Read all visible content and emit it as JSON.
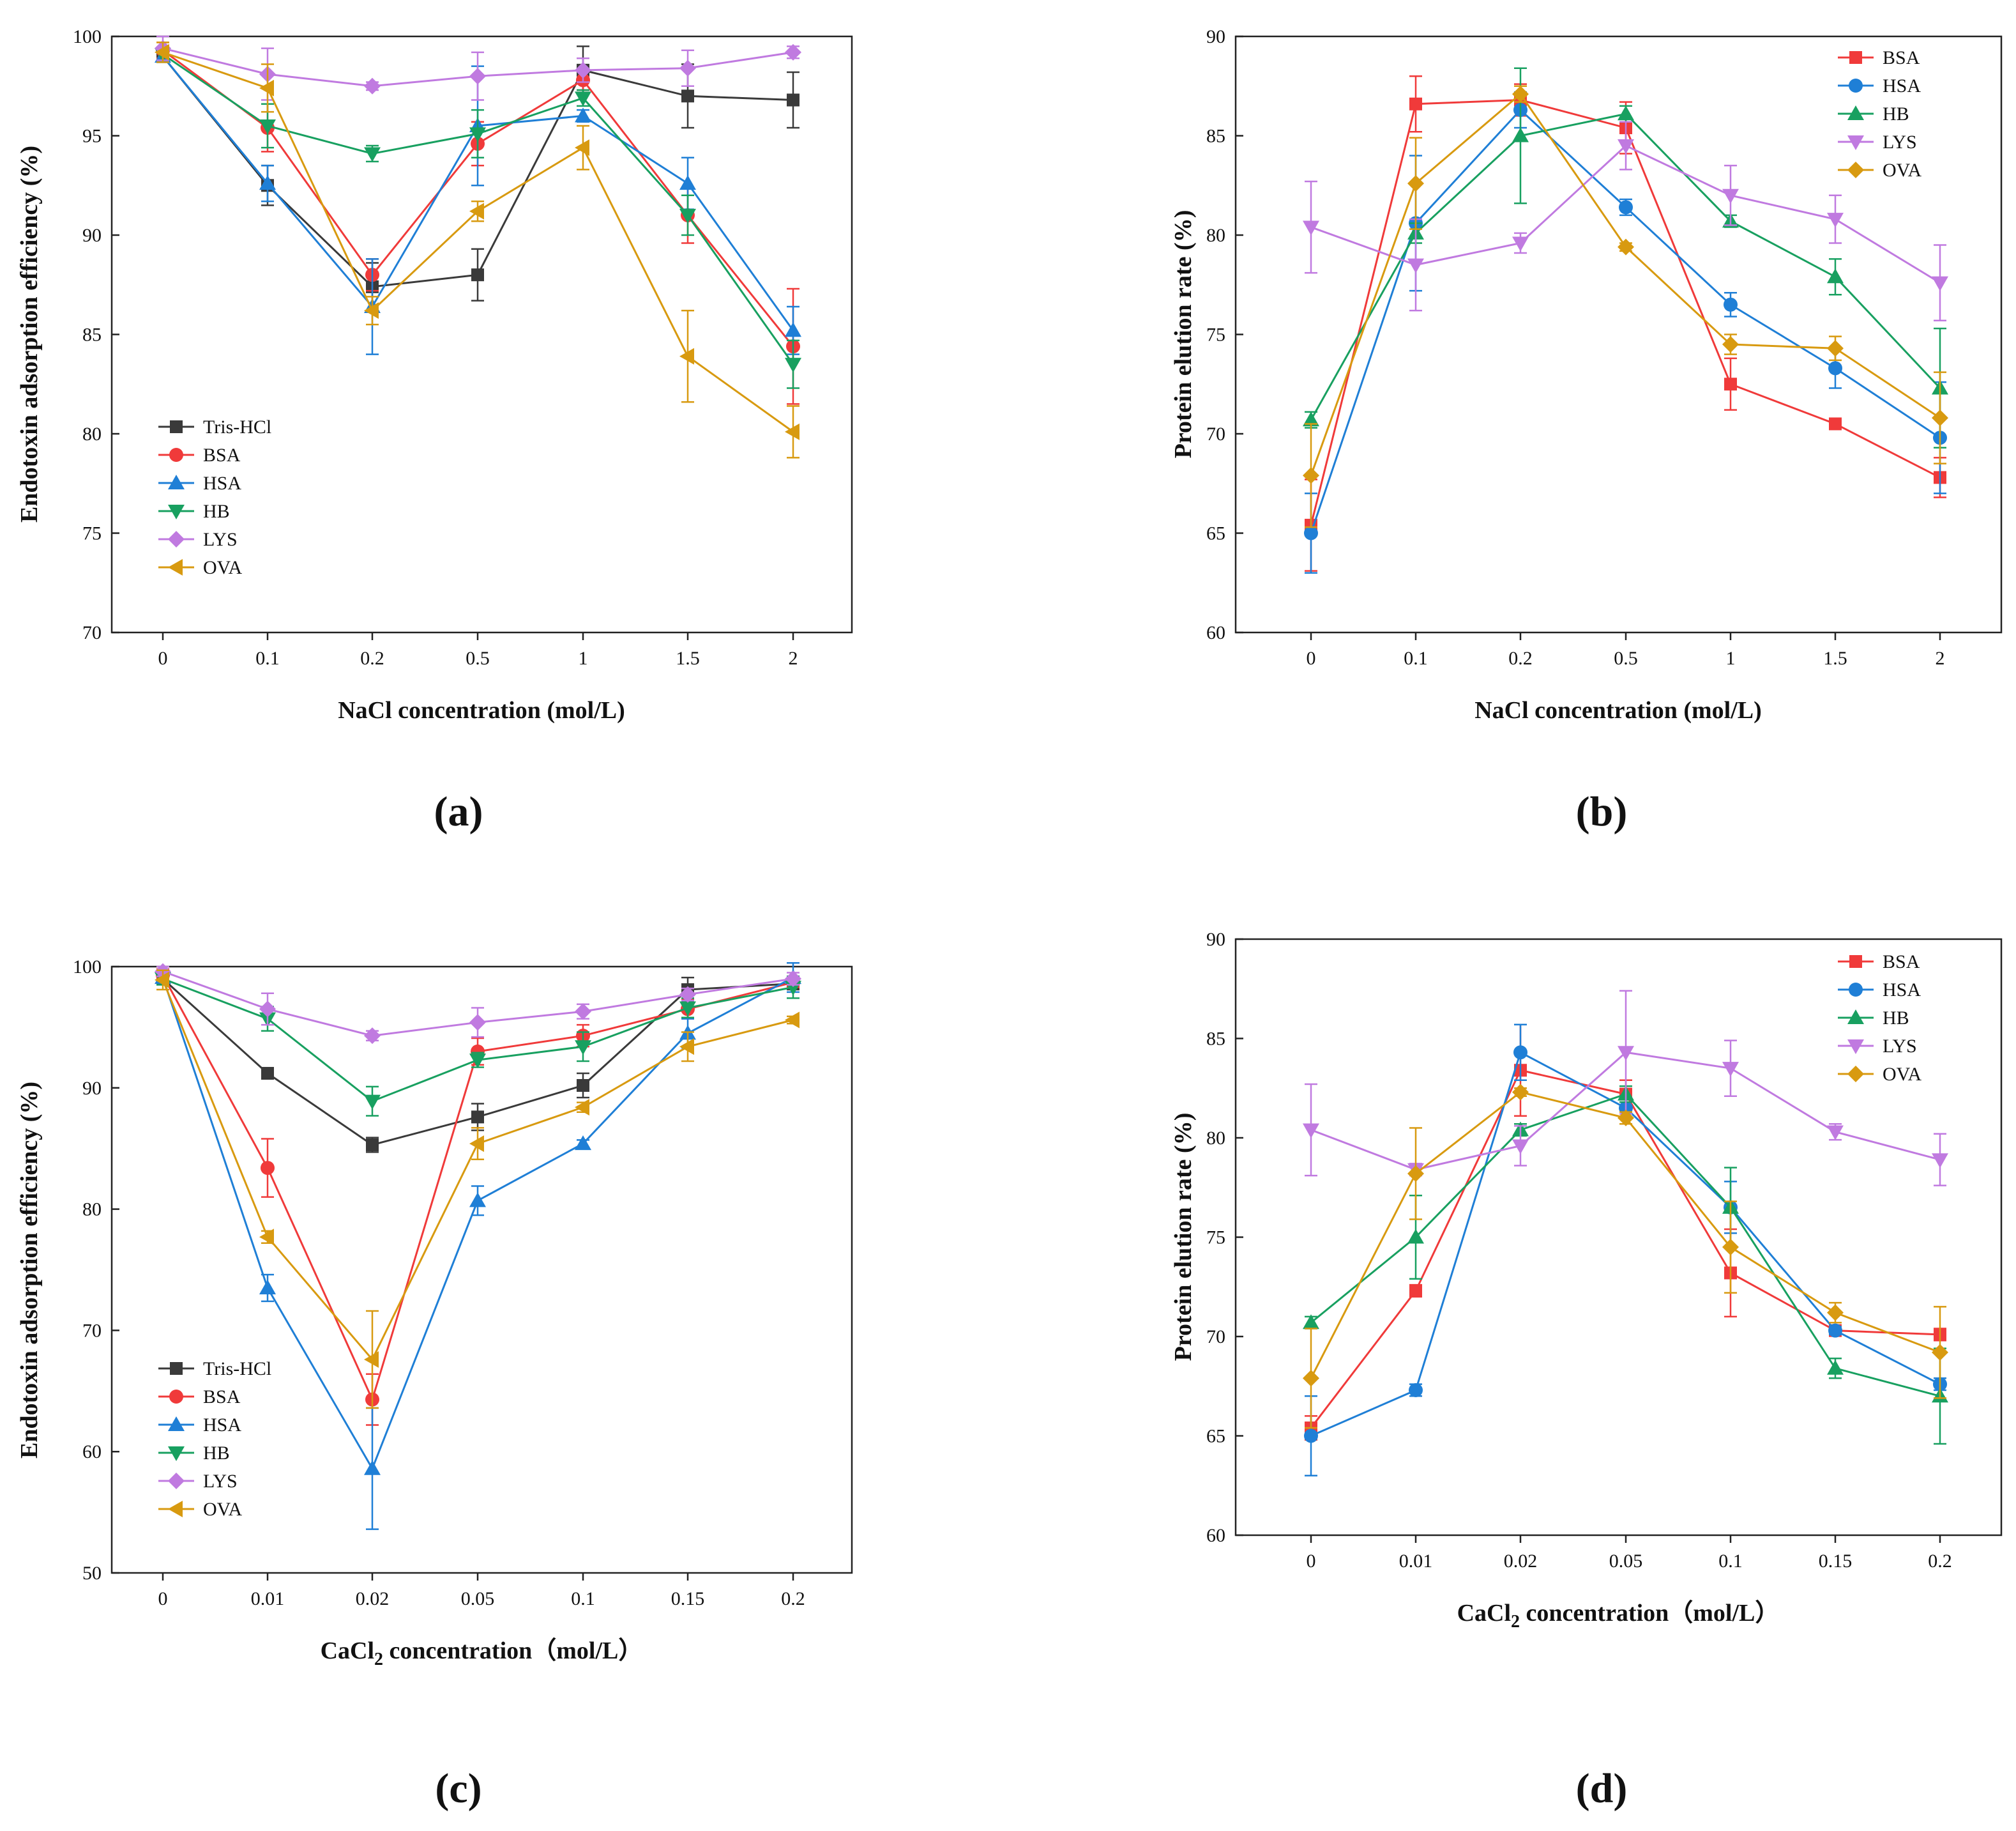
{
  "colors": {
    "Tris-HCl": "#3a3a3a",
    "BSA": "#f03a3a",
    "HSA": "#1f7fd6",
    "HB": "#18a060",
    "LYS": "#c07ae0",
    "OVA": "#d89a10"
  },
  "chart_data": [
    {
      "type": "line",
      "panel_label": "(a)",
      "xlabel": "NaCl concentration (mol/L)",
      "ylabel": "Endotoxin adsorption efficiency (%)",
      "categories": [
        "0",
        "0.1",
        "0.2",
        "0.5",
        "1",
        "1.5",
        "2"
      ],
      "ylim": [
        70,
        100
      ],
      "yticks": [
        "70",
        "75",
        "80",
        "85",
        "90",
        "95",
        "100"
      ],
      "legend_position": "bottom-left",
      "series": [
        {
          "name": "Tris-HCl",
          "marker": "square",
          "values": [
            99.0,
            92.5,
            87.4,
            88.0,
            98.3,
            97.0,
            96.8
          ],
          "errors": [
            0.3,
            1.0,
            1.2,
            1.3,
            1.2,
            1.6,
            1.4
          ]
        },
        {
          "name": "BSA",
          "marker": "circle",
          "values": [
            99.3,
            95.4,
            88.0,
            94.6,
            97.8,
            91.0,
            84.4
          ],
          "errors": [
            0.4,
            1.2,
            0.8,
            1.1,
            0.5,
            1.4,
            2.9
          ]
        },
        {
          "name": "HSA",
          "marker": "triangle-up",
          "values": [
            99.0,
            92.6,
            86.4,
            95.5,
            96.0,
            92.6,
            85.2
          ],
          "errors": [
            0.3,
            0.9,
            2.4,
            3.0,
            0.3,
            1.3,
            1.2
          ]
        },
        {
          "name": "HB",
          "marker": "triangle-down",
          "values": [
            99.1,
            95.5,
            94.1,
            95.1,
            96.9,
            91.0,
            83.5
          ],
          "errors": [
            0.3,
            1.1,
            0.4,
            1.2,
            0.4,
            1.0,
            1.2
          ]
        },
        {
          "name": "LYS",
          "marker": "diamond",
          "values": [
            99.4,
            98.1,
            97.5,
            98.0,
            98.3,
            98.4,
            99.2
          ],
          "errors": [
            0.6,
            1.3,
            0.2,
            1.2,
            0.6,
            0.9,
            0.3
          ]
        },
        {
          "name": "OVA",
          "marker": "triangle-left",
          "values": [
            99.2,
            97.4,
            86.2,
            91.2,
            94.4,
            83.9,
            80.1
          ],
          "errors": [
            0.5,
            1.2,
            0.7,
            0.5,
            1.1,
            2.3,
            1.3
          ]
        }
      ]
    },
    {
      "type": "line",
      "panel_label": "(b)",
      "xlabel": "NaCl concentration (mol/L)",
      "ylabel": "Protein elution rate (%)",
      "categories": [
        "0",
        "0.1",
        "0.2",
        "0.5",
        "1",
        "1.5",
        "2"
      ],
      "ylim": [
        60,
        90
      ],
      "yticks": [
        "60",
        "65",
        "70",
        "75",
        "80",
        "85",
        "90"
      ],
      "legend_position": "top-right",
      "series": [
        {
          "name": "BSA",
          "marker": "square",
          "values": [
            65.4,
            86.6,
            86.8,
            85.4,
            72.5,
            70.5,
            67.8
          ],
          "errors": [
            2.3,
            1.4,
            0.8,
            1.3,
            1.3,
            0.2,
            1.0
          ]
        },
        {
          "name": "HSA",
          "marker": "circle",
          "values": [
            65.0,
            80.6,
            86.3,
            81.4,
            76.5,
            73.3,
            69.8
          ],
          "errors": [
            2.0,
            3.4,
            0.9,
            0.4,
            0.6,
            1.0,
            2.8
          ]
        },
        {
          "name": "HB",
          "marker": "triangle-up",
          "values": [
            70.7,
            80.1,
            85.0,
            86.1,
            80.7,
            77.9,
            72.3
          ],
          "errors": [
            0.4,
            0.5,
            3.4,
            0.4,
            0.3,
            0.9,
            3.0
          ]
        },
        {
          "name": "LYS",
          "marker": "triangle-down",
          "values": [
            80.4,
            78.5,
            79.6,
            84.5,
            82.0,
            80.8,
            77.6
          ],
          "errors": [
            2.3,
            2.3,
            0.5,
            1.2,
            1.5,
            1.2,
            1.9
          ]
        },
        {
          "name": "OVA",
          "marker": "diamond",
          "values": [
            67.9,
            82.6,
            87.1,
            79.4,
            74.5,
            74.3,
            70.8
          ],
          "errors": [
            2.6,
            2.3,
            0.4,
            0.2,
            0.5,
            0.6,
            2.3
          ]
        }
      ]
    },
    {
      "type": "line",
      "panel_label": "(c)",
      "xlabel": "CaCl2 concentration（mol/L）",
      "xlabel_parts": {
        "pre": "CaCl",
        "sub": "2",
        "post": " concentration（mol/L）"
      },
      "ylabel": "Endotoxin adsorption efficiency (%)",
      "categories": [
        "0",
        "0.01",
        "0.02",
        "0.05",
        "0.1",
        "0.15",
        "0.2"
      ],
      "ylim": [
        50,
        100
      ],
      "yticks": [
        "50",
        "60",
        "70",
        "80",
        "90",
        "100"
      ],
      "legend_position": "bottom-left",
      "series": [
        {
          "name": "Tris-HCl",
          "marker": "square",
          "values": [
            99.0,
            91.2,
            85.3,
            87.6,
            90.2,
            98.1,
            98.6
          ],
          "errors": [
            0.4,
            0.3,
            0.6,
            1.1,
            1.0,
            1.0,
            0.5
          ]
        },
        {
          "name": "BSA",
          "marker": "circle",
          "values": [
            99.3,
            83.4,
            64.3,
            93.0,
            94.3,
            96.5,
            98.7
          ],
          "errors": [
            0.5,
            2.4,
            2.1,
            1.1,
            0.9,
            0.8,
            0.4
          ]
        },
        {
          "name": "HSA",
          "marker": "triangle-up",
          "values": [
            99.1,
            73.5,
            58.6,
            80.7,
            85.4,
            94.5,
            99.1
          ],
          "errors": [
            0.4,
            1.1,
            5.0,
            1.2,
            0.3,
            1.2,
            1.2
          ]
        },
        {
          "name": "HB",
          "marker": "triangle-down",
          "values": [
            99.0,
            95.7,
            88.9,
            92.3,
            93.4,
            96.6,
            98.3
          ],
          "errors": [
            0.5,
            1.0,
            1.2,
            0.6,
            1.2,
            0.8,
            0.9
          ]
        },
        {
          "name": "LYS",
          "marker": "diamond",
          "values": [
            99.6,
            96.5,
            94.3,
            95.4,
            96.3,
            97.7,
            99.0
          ],
          "errors": [
            0.4,
            1.3,
            0.4,
            1.2,
            0.6,
            0.5,
            0.5
          ]
        },
        {
          "name": "OVA",
          "marker": "triangle-left",
          "values": [
            98.9,
            77.7,
            67.6,
            85.4,
            88.4,
            93.4,
            95.6
          ],
          "errors": [
            0.8,
            0.5,
            4.0,
            1.3,
            0.4,
            1.2,
            0.3
          ]
        }
      ]
    },
    {
      "type": "line",
      "panel_label": "(d)",
      "xlabel": "CaCl2 concentration（mol/L）",
      "xlabel_parts": {
        "pre": "CaCl",
        "sub": "2",
        "post": " concentration（mol/L）"
      },
      "ylabel": "Protein elution rate (%)",
      "categories": [
        "0",
        "0.01",
        "0.02",
        "0.05",
        "0.1",
        "0.15",
        "0.2"
      ],
      "ylim": [
        60,
        90
      ],
      "yticks": [
        "60",
        "65",
        "70",
        "75",
        "80",
        "85",
        "90"
      ],
      "legend_position": "top-right",
      "series": [
        {
          "name": "BSA",
          "marker": "square",
          "values": [
            65.4,
            72.3,
            83.4,
            82.2,
            73.2,
            70.3,
            70.1
          ],
          "errors": [
            0.6,
            0.3,
            2.3,
            0.7,
            2.2,
            0.2,
            0.3
          ]
        },
        {
          "name": "HSA",
          "marker": "circle",
          "values": [
            65.0,
            67.3,
            84.3,
            81.5,
            76.5,
            70.3,
            67.6
          ],
          "errors": [
            2.0,
            0.3,
            1.4,
            0.5,
            1.3,
            0.2,
            0.3
          ]
        },
        {
          "name": "HB",
          "marker": "triangle-up",
          "values": [
            70.7,
            75.0,
            80.4,
            82.2,
            76.5,
            68.4,
            67.0
          ],
          "errors": [
            0.3,
            2.1,
            0.3,
            0.4,
            2.0,
            0.5,
            2.4
          ]
        },
        {
          "name": "LYS",
          "marker": "triangle-down",
          "values": [
            80.4,
            78.4,
            79.6,
            84.3,
            83.5,
            80.3,
            78.9
          ],
          "errors": [
            2.3,
            0.3,
            1.0,
            3.1,
            1.4,
            0.4,
            1.3
          ]
        },
        {
          "name": "OVA",
          "marker": "diamond",
          "values": [
            67.9,
            78.2,
            82.3,
            81.0,
            74.5,
            71.2,
            69.2
          ],
          "errors": [
            2.5,
            2.3,
            0.2,
            0.3,
            2.3,
            0.5,
            2.3
          ]
        }
      ]
    }
  ]
}
